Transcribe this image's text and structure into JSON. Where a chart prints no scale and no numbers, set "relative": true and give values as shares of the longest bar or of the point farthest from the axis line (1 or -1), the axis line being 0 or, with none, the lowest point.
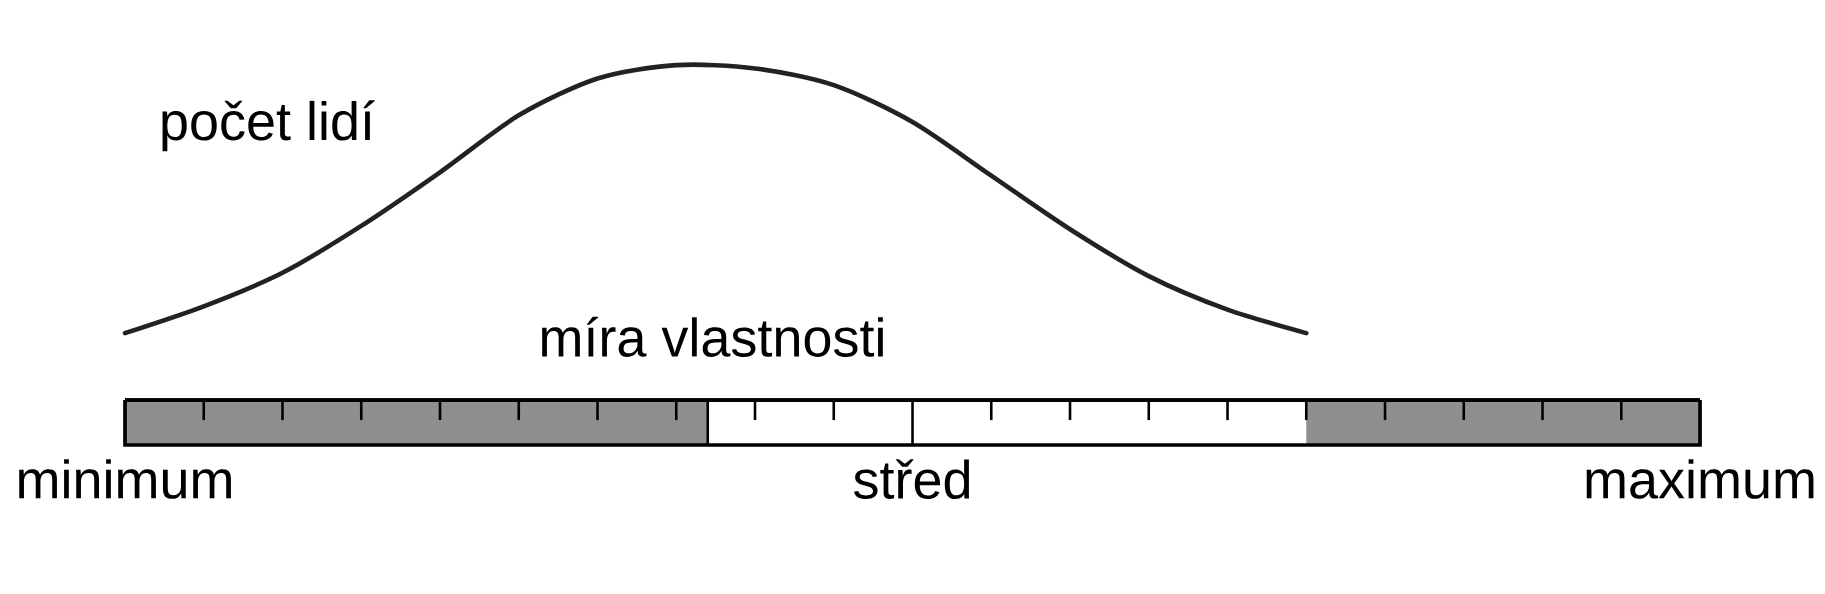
{
  "chart_data": {
    "type": "line",
    "xlabel": "míra vlastnosti",
    "ylabel": "počet lidí",
    "relative": true,
    "line_style": "solid",
    "categories": [
      "minimum",
      null,
      null,
      null,
      null,
      null,
      null,
      null,
      null,
      null,
      "střed",
      null,
      null,
      null,
      null,
      null,
      null,
      null,
      null,
      null,
      "maximum"
    ],
    "series": [
      {
        "color": "#222222",
        "values": [
          0.2,
          0.28,
          0.38,
          0.52,
          0.68,
          0.85,
          0.96,
          1,
          0.99,
          0.94,
          0.83,
          0.67,
          0.51,
          0.37,
          0.27,
          0.2,
          null,
          null,
          null,
          null,
          null
        ]
      }
    ]
  }
}
